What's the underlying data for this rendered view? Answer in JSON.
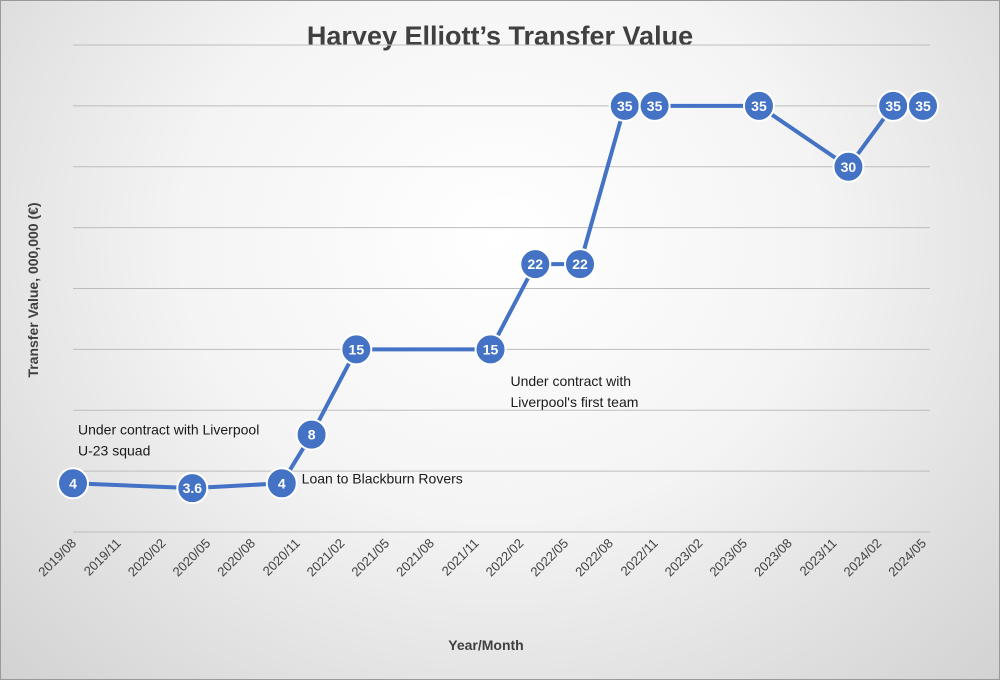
{
  "chart_data": {
    "type": "line",
    "title": "Harvey Elliott’s Transfer Value",
    "xlabel": "Year/Month",
    "ylabel": "Transfer Value, 000,000 (€)",
    "x_ticks": [
      "2019/08",
      "2019/11",
      "2020/02",
      "2020/05",
      "2020/08",
      "2020/11",
      "2021/02",
      "2021/05",
      "2021/08",
      "2021/11",
      "2022/02",
      "2022/05",
      "2022/08",
      "2022/11",
      "2023/02",
      "2023/05",
      "2023/08",
      "2023/11",
      "2024/02",
      "2024/05"
    ],
    "ylim": [
      0,
      40
    ],
    "y_gridlines": [
      5,
      10,
      15,
      20,
      25,
      30,
      35,
      40
    ],
    "y_tick_labels_shown": false,
    "grid": true,
    "series": [
      {
        "color": "#4472C4",
        "points": [
          {
            "x": "2019/08",
            "y": 4,
            "label": "4"
          },
          {
            "x": "2020/04",
            "y": 3.6,
            "label": "3.6"
          },
          {
            "x": "2020/10",
            "y": 4,
            "label": "4"
          },
          {
            "x": "2020/12",
            "y": 8,
            "label": "8"
          },
          {
            "x": "2021/03",
            "y": 15,
            "label": "15"
          },
          {
            "x": "2021/12",
            "y": 15,
            "label": "15"
          },
          {
            "x": "2022/03",
            "y": 22,
            "label": "22"
          },
          {
            "x": "2022/06",
            "y": 22,
            "label": "22"
          },
          {
            "x": "2022/09",
            "y": 35,
            "label": "35"
          },
          {
            "x": "2022/11",
            "y": 35,
            "label": "35"
          },
          {
            "x": "2023/06",
            "y": 35,
            "label": "35"
          },
          {
            "x": "2023/12",
            "y": 30,
            "label": "30"
          },
          {
            "x": "2024/03",
            "y": 35,
            "label": "35"
          },
          {
            "x": "2024/05",
            "y": 35,
            "label": "35"
          }
        ]
      }
    ],
    "annotations": [
      {
        "lines": [
          "Under contract with Liverpool",
          "U-23 squad"
        ],
        "x": "2019/08",
        "y": 8
      },
      {
        "lines": [
          "Loan to Blackburn Rovers"
        ],
        "x": "2020/11",
        "y": 4
      },
      {
        "lines": [
          "Under contract with",
          "Liverpool's first team"
        ],
        "x": "2022/01",
        "y": 12
      }
    ]
  }
}
